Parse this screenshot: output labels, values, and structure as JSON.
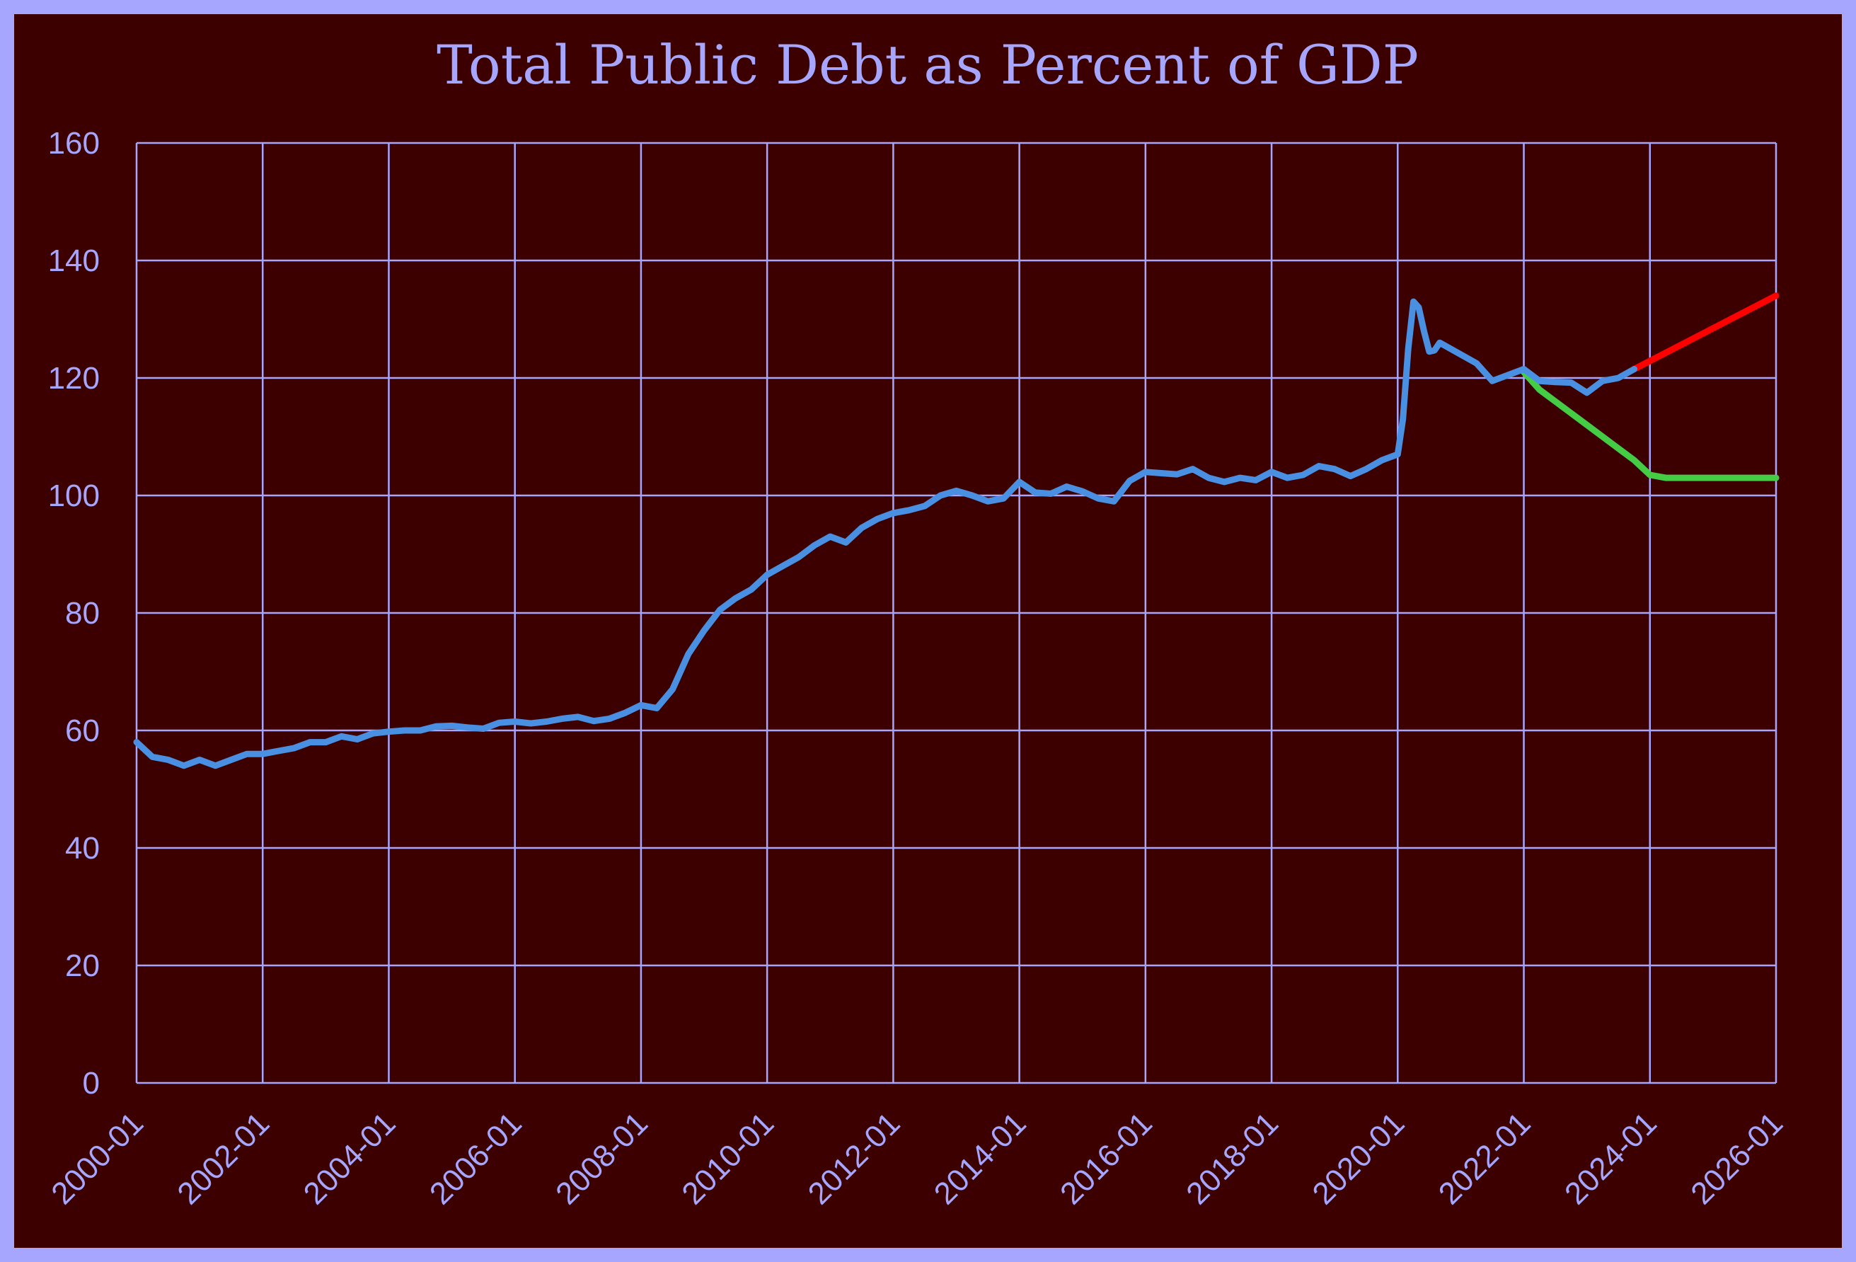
{
  "chart_data": {
    "type": "line",
    "title": "Total Public Debt as Percent of GDP",
    "xlabel": "",
    "ylabel": "",
    "x_range": [
      "2000-01",
      "2026-01"
    ],
    "ylim": [
      0,
      160
    ],
    "yticks": [
      0,
      20,
      40,
      60,
      80,
      100,
      120,
      140,
      160
    ],
    "xticks": [
      "2000-01",
      "2002-01",
      "2004-01",
      "2006-01",
      "2008-01",
      "2010-01",
      "2012-01",
      "2014-01",
      "2016-01",
      "2018-01",
      "2020-01",
      "2022-01",
      "2024-01",
      "2026-01"
    ],
    "grid": true,
    "legend": false,
    "background_color": "#3d0000",
    "frame_color": "#a6a6ff",
    "text_color": "#a6a6ff",
    "series": [
      {
        "color": "#4a90e2",
        "points": [
          [
            "2000-01",
            58
          ],
          [
            "2000-04",
            55.5
          ],
          [
            "2000-07",
            55
          ],
          [
            "2000-10",
            54
          ],
          [
            "2001-01",
            55
          ],
          [
            "2001-04",
            54
          ],
          [
            "2001-07",
            55
          ],
          [
            "2001-10",
            56
          ],
          [
            "2002-01",
            56
          ],
          [
            "2002-04",
            56.5
          ],
          [
            "2002-07",
            57
          ],
          [
            "2002-10",
            58
          ],
          [
            "2003-01",
            58
          ],
          [
            "2003-04",
            59
          ],
          [
            "2003-07",
            58.5
          ],
          [
            "2003-10",
            59.5
          ],
          [
            "2004-01",
            59.8
          ],
          [
            "2004-04",
            60
          ],
          [
            "2004-07",
            60
          ],
          [
            "2004-10",
            60.7
          ],
          [
            "2005-01",
            60.8
          ],
          [
            "2005-04",
            60.5
          ],
          [
            "2005-07",
            60.3
          ],
          [
            "2005-10",
            61.3
          ],
          [
            "2006-01",
            61.5
          ],
          [
            "2006-04",
            61.2
          ],
          [
            "2006-07",
            61.5
          ],
          [
            "2006-10",
            62
          ],
          [
            "2007-01",
            62.3
          ],
          [
            "2007-04",
            61.6
          ],
          [
            "2007-07",
            62
          ],
          [
            "2007-10",
            63
          ],
          [
            "2008-01",
            64.3
          ],
          [
            "2008-04",
            63.8
          ],
          [
            "2008-07",
            67
          ],
          [
            "2008-10",
            73
          ],
          [
            "2009-01",
            77
          ],
          [
            "2009-04",
            80.5
          ],
          [
            "2009-07",
            82.5
          ],
          [
            "2009-10",
            84
          ],
          [
            "2010-01",
            86.5
          ],
          [
            "2010-04",
            88
          ],
          [
            "2010-07",
            89.5
          ],
          [
            "2010-10",
            91.5
          ],
          [
            "2011-01",
            93
          ],
          [
            "2011-04",
            92
          ],
          [
            "2011-07",
            94.5
          ],
          [
            "2011-10",
            96
          ],
          [
            "2012-01",
            97
          ],
          [
            "2012-04",
            97.5
          ],
          [
            "2012-07",
            98.2
          ],
          [
            "2012-10",
            100
          ],
          [
            "2013-01",
            100.8
          ],
          [
            "2013-04",
            100
          ],
          [
            "2013-07",
            99
          ],
          [
            "2013-10",
            99.5
          ],
          [
            "2014-01",
            102.3
          ],
          [
            "2014-04",
            100.5
          ],
          [
            "2014-07",
            100.3
          ],
          [
            "2014-10",
            101.5
          ],
          [
            "2015-01",
            100.7
          ],
          [
            "2015-04",
            99.5
          ],
          [
            "2015-07",
            99
          ],
          [
            "2015-10",
            102.5
          ],
          [
            "2016-01",
            104
          ],
          [
            "2016-04",
            103.8
          ],
          [
            "2016-07",
            103.6
          ],
          [
            "2016-10",
            104.5
          ],
          [
            "2017-01",
            103
          ],
          [
            "2017-04",
            102.3
          ],
          [
            "2017-07",
            103
          ],
          [
            "2017-10",
            102.6
          ],
          [
            "2018-01",
            104
          ],
          [
            "2018-04",
            103
          ],
          [
            "2018-07",
            103.5
          ],
          [
            "2018-10",
            105
          ],
          [
            "2019-01",
            104.5
          ],
          [
            "2019-04",
            103.3
          ],
          [
            "2019-07",
            104.5
          ],
          [
            "2019-10",
            106
          ],
          [
            "2020-01",
            107
          ],
          [
            "2020-02",
            113
          ],
          [
            "2020-03",
            125
          ],
          [
            "2020-04",
            133
          ],
          [
            "2020-05",
            132
          ],
          [
            "2020-06",
            128
          ],
          [
            "2020-07",
            124.5
          ],
          [
            "2020-08",
            124.7
          ],
          [
            "2020-09",
            126
          ],
          [
            "2020-10",
            125.5
          ],
          [
            "2021-01",
            124
          ],
          [
            "2021-04",
            122.5
          ],
          [
            "2021-07",
            119.5
          ],
          [
            "2021-10",
            120.5
          ],
          [
            "2022-01",
            121.5
          ],
          [
            "2022-04",
            119.5
          ],
          [
            "2022-07",
            119.3
          ],
          [
            "2022-10",
            119.2
          ],
          [
            "2023-01",
            117.5
          ],
          [
            "2023-04",
            119.5
          ],
          [
            "2023-07",
            120
          ],
          [
            "2023-10",
            121.5
          ]
        ]
      },
      {
        "color": "#ff0000",
        "points": [
          [
            "2023-10",
            121.5
          ],
          [
            "2026-01",
            134
          ]
        ]
      },
      {
        "color": "#44cc44",
        "points": [
          [
            "2022-01",
            121
          ],
          [
            "2022-04",
            118
          ],
          [
            "2022-07",
            116
          ],
          [
            "2023-01",
            112
          ],
          [
            "2023-07",
            108
          ],
          [
            "2023-10",
            106
          ],
          [
            "2024-01",
            103.5
          ],
          [
            "2024-04",
            103
          ],
          [
            "2025-01",
            103
          ],
          [
            "2026-01",
            103
          ]
        ]
      }
    ]
  }
}
